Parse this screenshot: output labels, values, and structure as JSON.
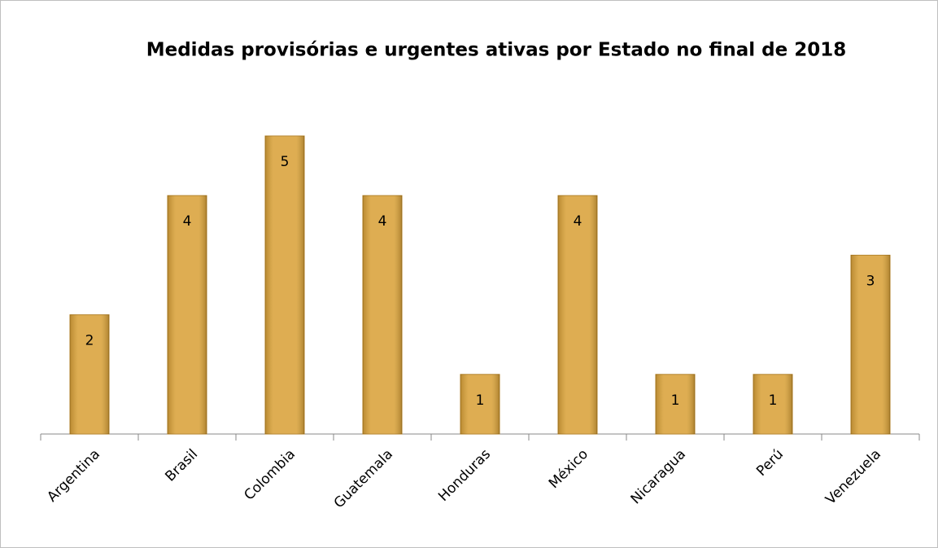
{
  "chart_data": {
    "type": "bar",
    "title": "Medidas provisórias e urgentes ativas por Estado no final de 2018",
    "categories": [
      "Argentina",
      "Brasil",
      "Colombia",
      "Guatemala",
      "Honduras",
      "México",
      "Nicaragua",
      "Perú",
      "Venezuela"
    ],
    "values": [
      2,
      4,
      5,
      4,
      1,
      4,
      1,
      1,
      3
    ],
    "color": "#d9a23a"
  }
}
